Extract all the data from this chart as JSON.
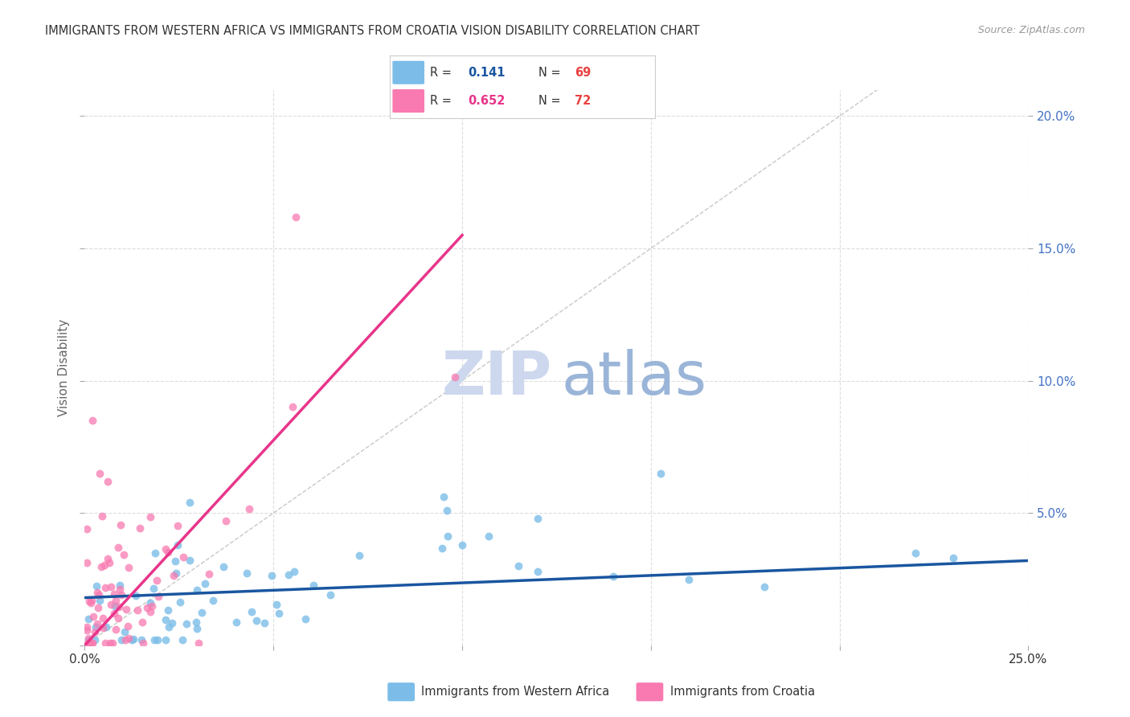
{
  "title": "IMMIGRANTS FROM WESTERN AFRICA VS IMMIGRANTS FROM CROATIA VISION DISABILITY CORRELATION CHART",
  "source": "Source: ZipAtlas.com",
  "xlabel_blue": "Immigrants from Western Africa",
  "xlabel_pink": "Immigrants from Croatia",
  "ylabel": "Vision Disability",
  "xlim": [
    0.0,
    0.25
  ],
  "ylim": [
    0.0,
    0.21
  ],
  "color_blue": "#7bbde8",
  "color_pink": "#f87ab0",
  "trendline_blue_color": "#1a56a0",
  "trendline_pink_color": "#e8358a",
  "diagonal_color": "#c8c8c8",
  "grid_color": "#dddddd",
  "legend_R_blue": "0.141",
  "legend_N_blue": "69",
  "legend_R_pink": "0.652",
  "legend_N_pink": "72",
  "legend_R_color": "#333333",
  "legend_R_val_blue_color": "#1a56a0",
  "legend_N_val_color": "#e84040",
  "legend_R_val_pink_color": "#e8358a",
  "watermark_ZIP_color": "#cdd8ee",
  "watermark_atlas_color": "#9ab5d8",
  "title_color": "#333333",
  "source_color": "#999999",
  "ylabel_color": "#666666",
  "right_tick_color": "#4472c4",
  "bottom_tick_color": "#333333"
}
